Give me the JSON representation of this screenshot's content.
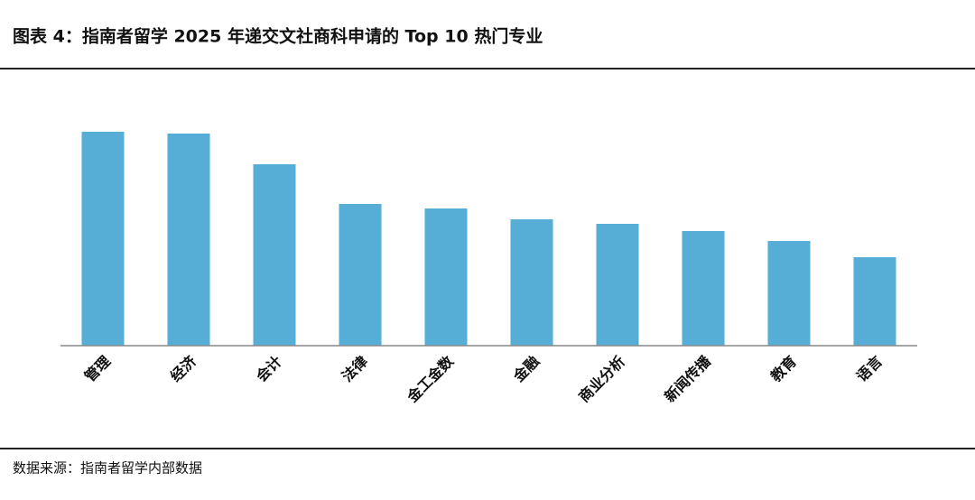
{
  "chart_data": {
    "type": "bar",
    "title": "图表 4：指南者留学 2025 年递交文社商科申请的 Top 10 热门专业",
    "source": "数据来源：指南者留学内部数据",
    "categories": [
      "管理",
      "经济",
      "会计",
      "法律",
      "金工金数",
      "金融",
      "商业分析",
      "新闻传播",
      "教育",
      "语言"
    ],
    "values": [
      237,
      235,
      201,
      157,
      152,
      140,
      135,
      127,
      116,
      98
    ],
    "color": "#56aed6",
    "ylim": [
      0,
      250
    ],
    "grid": false
  }
}
